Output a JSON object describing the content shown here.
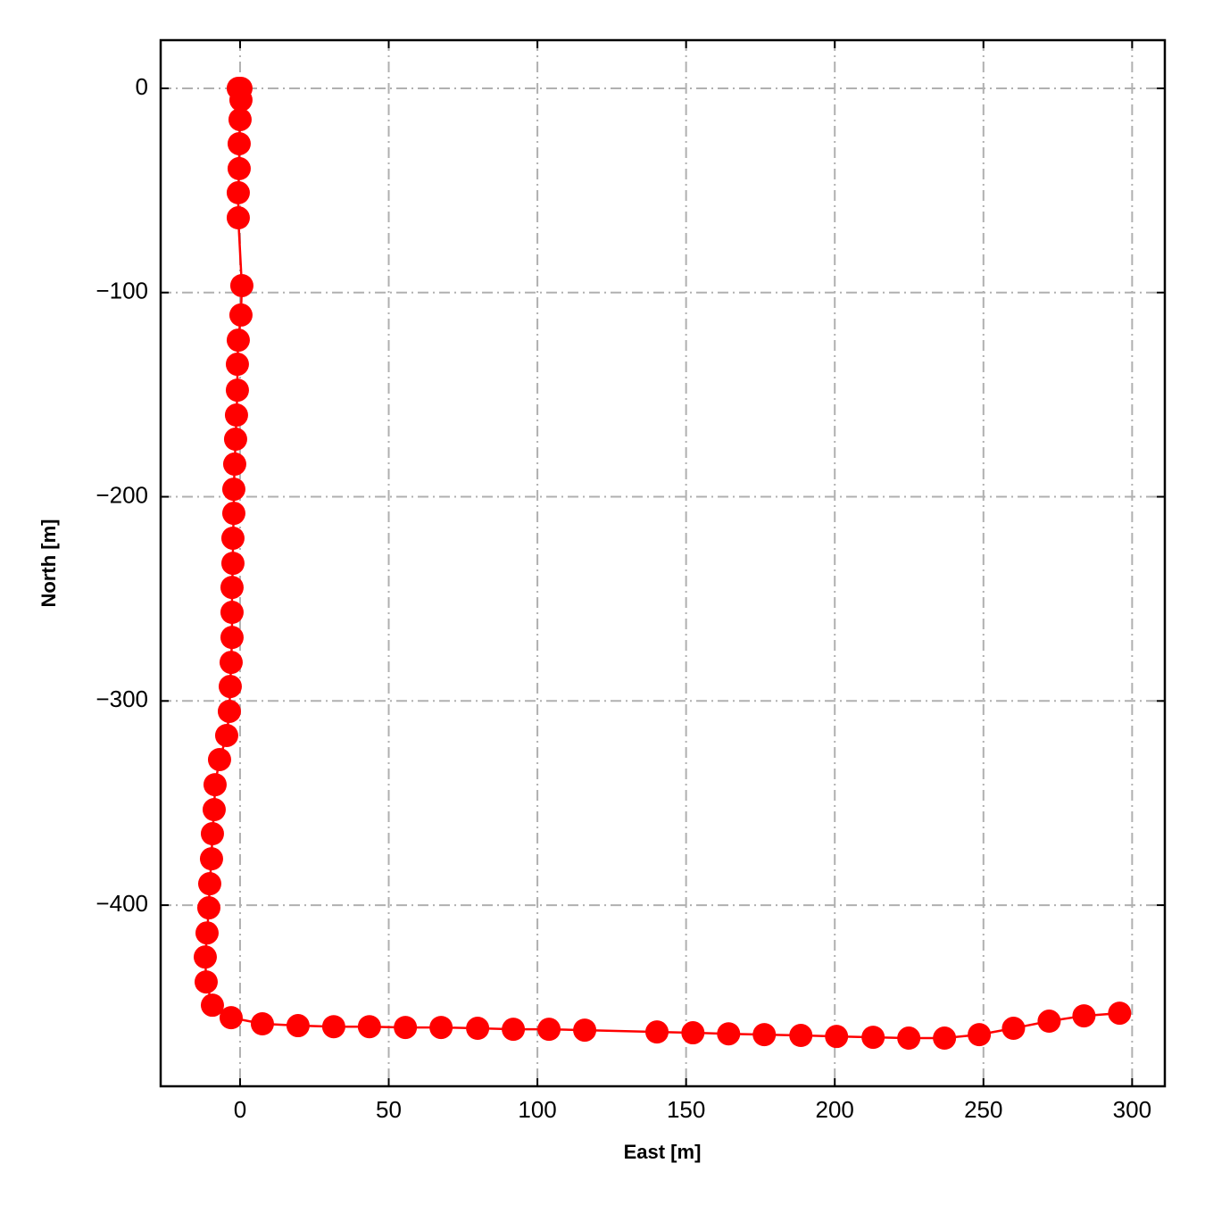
{
  "chart_data": {
    "type": "line",
    "xlabel": "East [m]",
    "ylabel": "North [m]",
    "x": [
      -0.6,
      0.3,
      0.3,
      0,
      -0.3,
      -0.3,
      -0.6,
      -0.6,
      0.6,
      0.3,
      -0.6,
      -0.9,
      -0.9,
      -1.2,
      -1.5,
      -1.8,
      -2.1,
      -2.1,
      -2.4,
      -2.4,
      -2.7,
      -2.7,
      -2.7,
      -3,
      -3.3,
      -3.6,
      -4.5,
      -6.9,
      -8.4,
      -8.7,
      -9.3,
      -9.6,
      -10.2,
      -10.5,
      -11.1,
      -11.7,
      -11.4,
      -9.3,
      -3,
      7.5,
      19.5,
      31.5,
      43.5,
      55.6,
      67.6,
      79.9,
      91.9,
      103.9,
      115.9,
      140.2,
      152.3,
      164.3,
      176.3,
      188.6,
      200.6,
      212.9,
      224.9,
      236.9,
      248.6,
      260.1,
      272.1,
      283.8,
      295.8
    ],
    "values": [
      0,
      0,
      -5.7,
      -15.3,
      -27.1,
      -39.3,
      -51.1,
      -63.4,
      -96.6,
      -111,
      -123.3,
      -135.1,
      -147.8,
      -160,
      -171.8,
      -184,
      -196.3,
      -208.1,
      -220.3,
      -232.6,
      -244.4,
      -256.6,
      -268.9,
      -281.1,
      -292.9,
      -305.1,
      -316.9,
      -328.7,
      -341,
      -353.2,
      -365,
      -377.3,
      -389.5,
      -401.3,
      -413.6,
      -425.4,
      -437.6,
      -449,
      -455.1,
      -458.1,
      -459,
      -459.5,
      -459.5,
      -459.9,
      -459.9,
      -460.3,
      -460.8,
      -460.8,
      -461.2,
      -462.1,
      -462.5,
      -463,
      -463.4,
      -463.8,
      -464.3,
      -464.7,
      -465.1,
      -465.1,
      -463.4,
      -460.3,
      -456.8,
      -454.2,
      -452.9
    ],
    "color": "#ff0000",
    "xlim": [
      -26.7,
      311
    ],
    "ylim": [
      -488.7,
      23.6
    ],
    "xticks": [
      0,
      50,
      100,
      150,
      200,
      250,
      300
    ],
    "yticks": [
      0,
      {
        "value": -100,
        "label": "−100"
      },
      {
        "value": -200,
        "label": "−200"
      },
      {
        "value": -300,
        "label": "−300"
      },
      {
        "value": -400,
        "label": "−400"
      }
    ],
    "grid": true
  }
}
